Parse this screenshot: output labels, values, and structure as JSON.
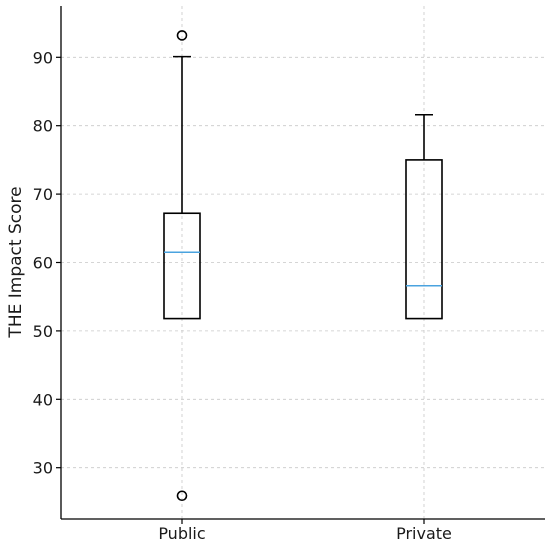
{
  "chart_data": {
    "type": "box",
    "ylabel": "THE Impact Score",
    "xlabel": "",
    "title": "",
    "ylim": [
      22.5,
      97.5
    ],
    "yticks": [
      30,
      40,
      50,
      60,
      70,
      80,
      90
    ],
    "grid": true,
    "categories": [
      "Public",
      "Private"
    ],
    "boxes": [
      {
        "category": "Public",
        "whisker_low": 51.8,
        "q1": 51.8,
        "median": 61.5,
        "q3": 67.2,
        "whisker_high": 90.1,
        "outliers": [
          93.2,
          25.9
        ]
      },
      {
        "category": "Private",
        "whisker_low": 51.8,
        "q1": 51.8,
        "median": 56.6,
        "q3": 75.0,
        "whisker_high": 81.6,
        "outliers": []
      }
    ],
    "colors": {
      "box": "#000000",
      "median": "#4aa3df",
      "grid": "#c8c8c8"
    }
  }
}
